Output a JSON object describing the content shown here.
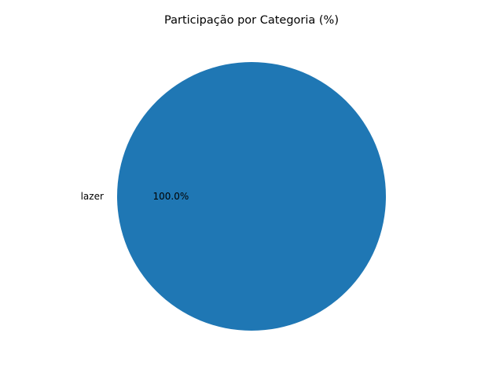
{
  "chart_data": {
    "type": "pie",
    "title": "Participação por Categoria (%)",
    "slices": [
      {
        "label": "lazer",
        "value": 100.0,
        "percent_label": "100.0%",
        "color": "#1f77b4"
      }
    ]
  }
}
